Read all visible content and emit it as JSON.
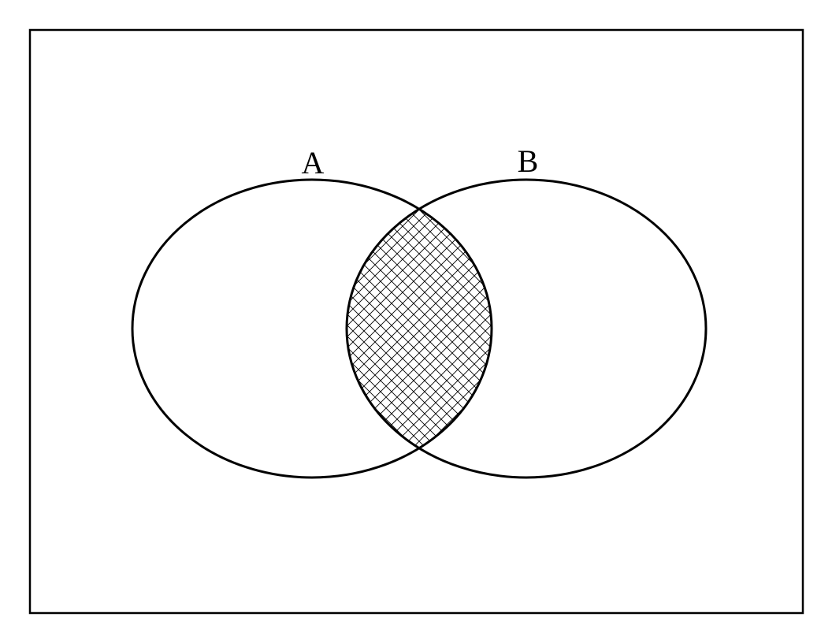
{
  "diagram": {
    "type": "venn",
    "sets": [
      {
        "id": "A",
        "label": "A"
      },
      {
        "id": "B",
        "label": "B"
      }
    ],
    "shaded_region": "A ∩ B",
    "shading_pattern": "crosshatch",
    "colors": {
      "stroke": "#000000",
      "background": "#ffffff"
    }
  }
}
